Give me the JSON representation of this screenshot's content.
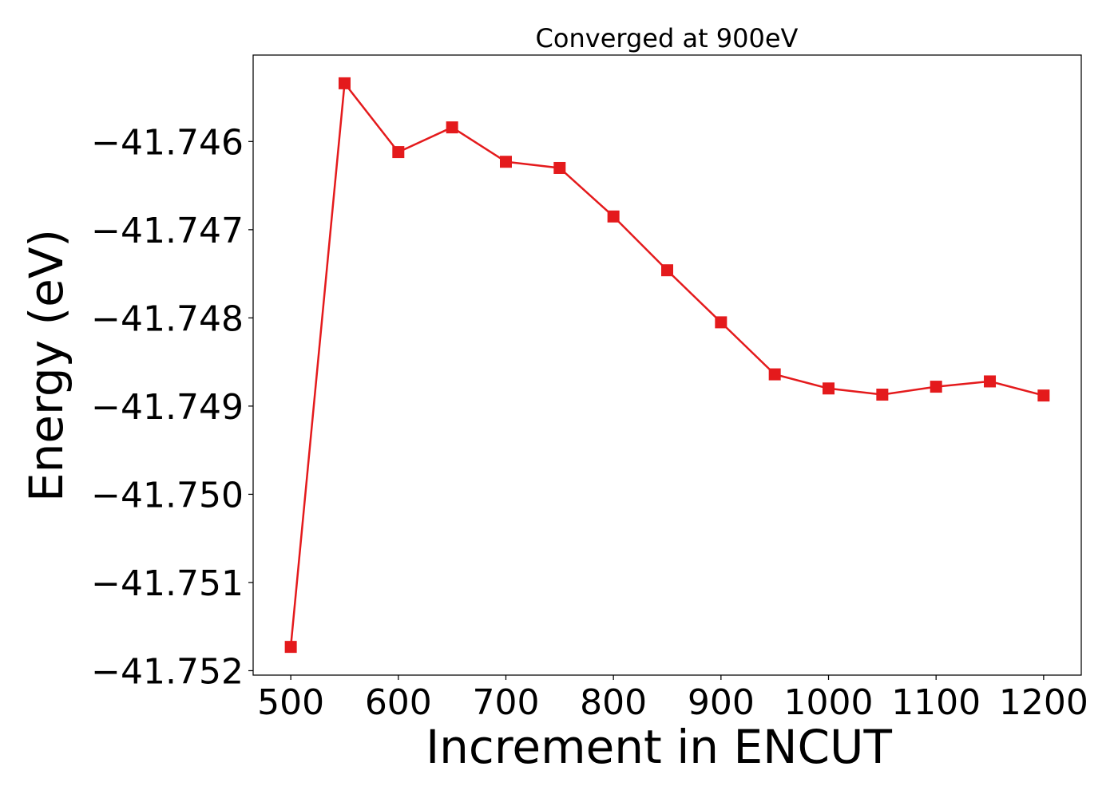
{
  "chart_data": {
    "type": "line",
    "title": "Converged at 900eV",
    "xlabel": "Increment in ENCUT",
    "ylabel": "Energy (eV)",
    "xlim": [
      465,
      1235
    ],
    "ylim": [
      -41.75205,
      -41.74502
    ],
    "x_ticks": [
      500,
      600,
      700,
      800,
      900,
      1000,
      1100,
      1200
    ],
    "x_tick_labels": [
      "500",
      "600",
      "700",
      "800",
      "900",
      "1000",
      "1100",
      "1200"
    ],
    "y_ticks": [
      -41.746,
      -41.747,
      -41.748,
      -41.749,
      -41.75,
      -41.751,
      -41.752
    ],
    "y_tick_labels": [
      "−41.746",
      "−41.747",
      "−41.748",
      "−41.749",
      "−41.750",
      "−41.751",
      "−41.752"
    ],
    "grid": false,
    "legend": null,
    "series": [
      {
        "color": "#e41a1c",
        "marker": "square",
        "x": [
          500,
          550,
          600,
          650,
          700,
          750,
          800,
          850,
          900,
          950,
          1000,
          1050,
          1100,
          1150,
          1200
        ],
        "y": [
          -41.75173,
          -41.74534,
          -41.74612,
          -41.74584,
          -41.74623,
          -41.7463,
          -41.74685,
          -41.74746,
          -41.74805,
          -41.74864,
          -41.7488,
          -41.74887,
          -41.74878,
          -41.74872,
          -41.74888
        ]
      }
    ]
  }
}
